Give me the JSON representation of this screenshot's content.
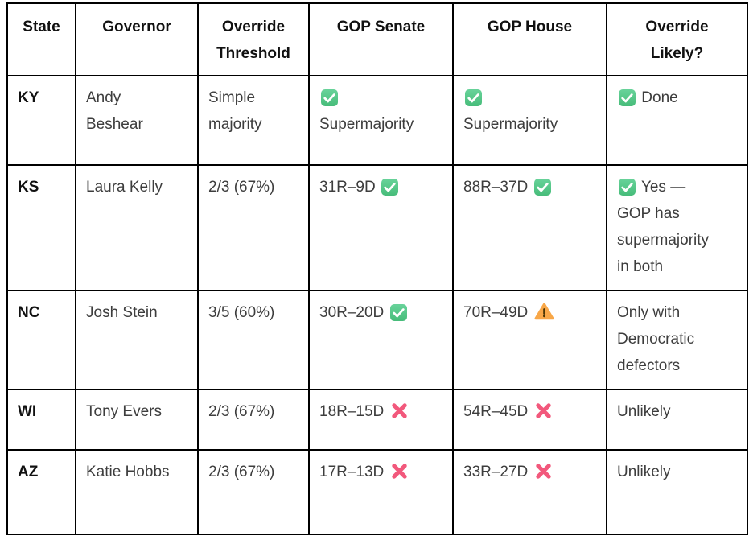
{
  "colors": {
    "border": "#000000",
    "header_text": "#111111",
    "body_text": "#3d3d3d",
    "check_green_top": "#68d39a",
    "check_green_bottom": "#47bc7a",
    "warning_orange": "#f8a748",
    "warning_mark": "#4a3505",
    "cross_pink": "#f2587c",
    "background": "#ffffff"
  },
  "icons": {
    "check": "check-icon",
    "warning": "warning-icon",
    "cross": "cross-icon"
  },
  "table": {
    "columns": [
      {
        "key": "state",
        "lines": [
          "State"
        ]
      },
      {
        "key": "governor",
        "lines": [
          "Governor"
        ]
      },
      {
        "key": "override-threshold",
        "lines": [
          "Override",
          "Threshold"
        ]
      },
      {
        "key": "gop-senate",
        "lines": [
          "GOP Senate"
        ]
      },
      {
        "key": "gop-house",
        "lines": [
          "GOP House"
        ]
      },
      {
        "key": "override-likely",
        "lines": [
          "Override",
          "Likely?"
        ]
      }
    ],
    "rows": [
      {
        "key": "KY",
        "cells": [
          {
            "lines": [
              [
                {
                  "text": "KY"
                }
              ]
            ]
          },
          {
            "lines": [
              [
                {
                  "text": "Andy"
                }
              ],
              [
                {
                  "text": "Beshear"
                }
              ]
            ]
          },
          {
            "lines": [
              [
                {
                  "text": "Simple"
                }
              ],
              [
                {
                  "text": "majority"
                }
              ]
            ]
          },
          {
            "lines": [
              [
                {
                  "icon": "check"
                }
              ],
              [
                {
                  "text": "Supermajority"
                }
              ]
            ]
          },
          {
            "lines": [
              [
                {
                  "icon": "check"
                }
              ],
              [
                {
                  "text": "Supermajority"
                }
              ]
            ]
          },
          {
            "lines": [
              [
                {
                  "icon": "check"
                },
                {
                  "text": "Done"
                }
              ]
            ]
          }
        ]
      },
      {
        "key": "KS",
        "cells": [
          {
            "lines": [
              [
                {
                  "text": "KS"
                }
              ]
            ]
          },
          {
            "lines": [
              [
                {
                  "text": "Laura Kelly"
                }
              ]
            ]
          },
          {
            "lines": [
              [
                {
                  "text": "2/3 (67%)"
                }
              ]
            ]
          },
          {
            "lines": [
              [
                {
                  "text": "31R–9D"
                },
                {
                  "icon": "check"
                }
              ]
            ]
          },
          {
            "lines": [
              [
                {
                  "text": "88R–37D"
                },
                {
                  "icon": "check"
                }
              ]
            ]
          },
          {
            "lines": [
              [
                {
                  "icon": "check"
                },
                {
                  "text": "Yes —"
                }
              ],
              [
                {
                  "text": "GOP has"
                }
              ],
              [
                {
                  "text": "supermajority"
                }
              ],
              [
                {
                  "text": "in both"
                }
              ]
            ]
          }
        ]
      },
      {
        "key": "NC",
        "cells": [
          {
            "lines": [
              [
                {
                  "text": "NC"
                }
              ]
            ]
          },
          {
            "lines": [
              [
                {
                  "text": "Josh Stein"
                }
              ]
            ]
          },
          {
            "lines": [
              [
                {
                  "text": "3/5 (60%)"
                }
              ]
            ]
          },
          {
            "lines": [
              [
                {
                  "text": "30R–20D"
                },
                {
                  "icon": "check"
                }
              ]
            ]
          },
          {
            "lines": [
              [
                {
                  "text": "70R–49D"
                },
                {
                  "icon": "warning"
                }
              ]
            ]
          },
          {
            "lines": [
              [
                {
                  "text": "Only with"
                }
              ],
              [
                {
                  "text": "Democratic"
                }
              ],
              [
                {
                  "text": "defectors"
                }
              ]
            ]
          }
        ]
      },
      {
        "key": "WI",
        "cells": [
          {
            "lines": [
              [
                {
                  "text": "WI"
                }
              ]
            ]
          },
          {
            "lines": [
              [
                {
                  "text": "Tony Evers"
                }
              ]
            ]
          },
          {
            "lines": [
              [
                {
                  "text": "2/3 (67%)"
                }
              ]
            ]
          },
          {
            "lines": [
              [
                {
                  "text": "18R–15D"
                },
                {
                  "icon": "cross"
                }
              ]
            ]
          },
          {
            "lines": [
              [
                {
                  "text": "54R–45D"
                },
                {
                  "icon": "cross"
                }
              ]
            ]
          },
          {
            "lines": [
              [
                {
                  "text": "Unlikely"
                }
              ]
            ]
          }
        ]
      },
      {
        "key": "AZ",
        "cells": [
          {
            "lines": [
              [
                {
                  "text": "AZ"
                }
              ]
            ]
          },
          {
            "lines": [
              [
                {
                  "text": "Katie Hobbs"
                }
              ]
            ]
          },
          {
            "lines": [
              [
                {
                  "text": "2/3 (67%)"
                }
              ]
            ]
          },
          {
            "lines": [
              [
                {
                  "text": "17R–13D"
                },
                {
                  "icon": "cross"
                }
              ]
            ]
          },
          {
            "lines": [
              [
                {
                  "text": "33R–27D"
                },
                {
                  "icon": "cross"
                }
              ]
            ]
          },
          {
            "lines": [
              [
                {
                  "text": "Unlikely"
                }
              ]
            ]
          }
        ]
      }
    ]
  }
}
